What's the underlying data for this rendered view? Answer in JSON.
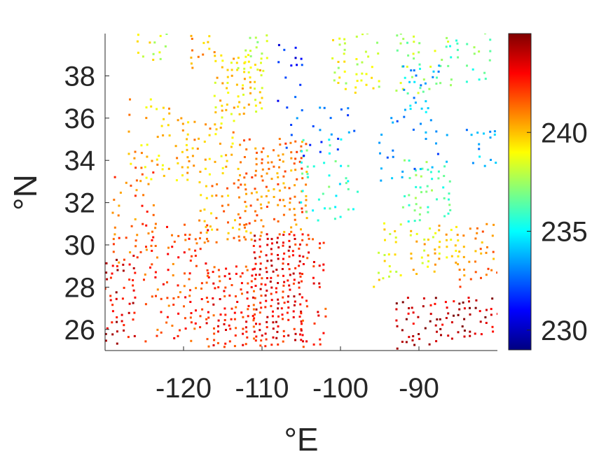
{
  "chart_data": {
    "type": "scatter",
    "title": "",
    "xlabel": "°E",
    "ylabel": "°N",
    "xlim": [
      -130,
      -80
    ],
    "ylim": [
      25,
      40
    ],
    "xticks": [
      -120,
      -110,
      -100,
      -90
    ],
    "xtick_labels": [
      "-120",
      "-110",
      "-100",
      "-90"
    ],
    "yticks": [
      26,
      28,
      30,
      32,
      34,
      36,
      38
    ],
    "ytick_labels": [
      "26",
      "28",
      "30",
      "32",
      "34",
      "36",
      "38"
    ],
    "colorbar": {
      "colormap": "jet",
      "range": [
        229,
        245
      ],
      "ticks": [
        230,
        235,
        240
      ],
      "tick_labels": [
        "230",
        "235",
        "240"
      ]
    },
    "grid": false,
    "legend": "none",
    "marker_size_note": "small square markers",
    "clusters": [
      {
        "x": [
          -111,
          -105
        ],
        "y": [
          25,
          30.5
        ],
        "value": 243,
        "density": 0.9
      },
      {
        "x": [
          -117,
          -111
        ],
        "y": [
          25,
          29
        ],
        "value": 242.5,
        "density": 0.7
      },
      {
        "x": [
          -130,
          -126
        ],
        "y": [
          25,
          29.5
        ],
        "value": 243.5,
        "density": 0.55
      },
      {
        "x": [
          -125,
          -117
        ],
        "y": [
          25,
          31
        ],
        "value": 242,
        "density": 0.35
      },
      {
        "x": [
          -105,
          -102
        ],
        "y": [
          25,
          30.5
        ],
        "value": 242.5,
        "density": 0.45
      },
      {
        "x": [
          -93,
          -80
        ],
        "y": [
          25,
          27.5
        ],
        "value": 244,
        "density": 0.55
      },
      {
        "x": [
          -113,
          -104
        ],
        "y": [
          30,
          35
        ],
        "value": 241,
        "density": 0.6
      },
      {
        "x": [
          -118,
          -112
        ],
        "y": [
          30,
          33
        ],
        "value": 240.5,
        "density": 0.45
      },
      {
        "x": [
          -129,
          -124
        ],
        "y": [
          29,
          34
        ],
        "value": 241.5,
        "density": 0.3
      },
      {
        "x": [
          -127,
          -122
        ],
        "y": [
          33,
          37
        ],
        "value": 240,
        "density": 0.3
      },
      {
        "x": [
          -121,
          -113
        ],
        "y": [
          33,
          36
        ],
        "value": 240,
        "density": 0.35
      },
      {
        "x": [
          -116,
          -110
        ],
        "y": [
          36,
          39
        ],
        "value": 239.5,
        "density": 0.7
      },
      {
        "x": [
          -119,
          -116
        ],
        "y": [
          38,
          40
        ],
        "value": 240,
        "density": 0.4
      },
      {
        "x": [
          -126,
          -122
        ],
        "y": [
          38.5,
          40
        ],
        "value": 238.5,
        "density": 0.4
      },
      {
        "x": [
          -113,
          -109
        ],
        "y": [
          38,
          40
        ],
        "value": 238,
        "density": 0.3
      },
      {
        "x": [
          -101,
          -95
        ],
        "y": [
          37,
          40
        ],
        "value": 238.5,
        "density": 0.45
      },
      {
        "x": [
          -93,
          -86
        ],
        "y": [
          37,
          40
        ],
        "value": 237.5,
        "density": 0.3
      },
      {
        "x": [
          -86,
          -81
        ],
        "y": [
          37.5,
          40
        ],
        "value": 236.5,
        "density": 0.3
      },
      {
        "x": [
          -92,
          -86
        ],
        "y": [
          31,
          34
        ],
        "value": 236.5,
        "density": 0.5
      },
      {
        "x": [
          -91,
          -85
        ],
        "y": [
          28.5,
          31
        ],
        "value": 239.5,
        "density": 0.45
      },
      {
        "x": [
          -85,
          -80
        ],
        "y": [
          28,
          31
        ],
        "value": 241,
        "density": 0.4
      },
      {
        "x": [
          -96,
          -92
        ],
        "y": [
          28,
          31
        ],
        "value": 239,
        "density": 0.35
      },
      {
        "x": [
          -105,
          -98
        ],
        "y": [
          31,
          35
        ],
        "value": 236,
        "density": 0.22
      },
      {
        "x": [
          -107,
          -98
        ],
        "y": [
          34,
          36.5
        ],
        "value": 232.5,
        "density": 0.18
      },
      {
        "x": [
          -108,
          -104
        ],
        "y": [
          36.5,
          39.5
        ],
        "value": 231.5,
        "density": 0.2
      },
      {
        "x": [
          -92,
          -87
        ],
        "y": [
          36,
          38.5
        ],
        "value": 234,
        "density": 0.35
      },
      {
        "x": [
          -95,
          -86
        ],
        "y": [
          33,
          36
        ],
        "value": 233,
        "density": 0.25
      },
      {
        "x": [
          -84,
          -80
        ],
        "y": [
          33.5,
          35.5
        ],
        "value": 233.5,
        "density": 0.3
      },
      {
        "x": [
          -103,
          -95
        ],
        "y": [
          32,
          33
        ],
        "value": 235.5,
        "density": 0.2
      }
    ]
  }
}
